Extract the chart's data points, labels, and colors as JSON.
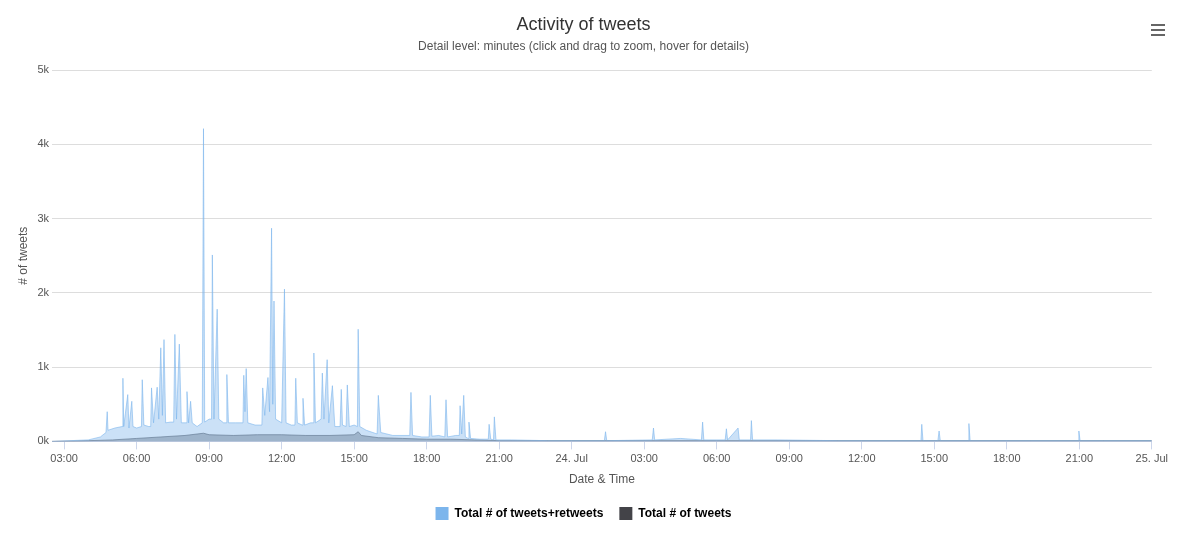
{
  "chart_data": {
    "type": "area",
    "title": "Activity of tweets",
    "subtitle": "Detail level: minutes (click and drag to zoom, hover for details)",
    "xlabel": "Date & Time",
    "ylabel": "# of tweets",
    "xlim": [
      "--07-23T02:30",
      "--07-25T00:00"
    ],
    "xticks": [
      {
        "value": "--07-23T03:00",
        "label": "03:00"
      },
      {
        "value": "--07-23T06:00",
        "label": "06:00"
      },
      {
        "value": "--07-23T09:00",
        "label": "09:00"
      },
      {
        "value": "--07-23T12:00",
        "label": "12:00"
      },
      {
        "value": "--07-23T15:00",
        "label": "15:00"
      },
      {
        "value": "--07-23T18:00",
        "label": "18:00"
      },
      {
        "value": "--07-23T21:00",
        "label": "21:00"
      },
      {
        "value": "--07-24T00:00",
        "label": "24. Jul"
      },
      {
        "value": "--07-24T03:00",
        "label": "03:00"
      },
      {
        "value": "--07-24T06:00",
        "label": "06:00"
      },
      {
        "value": "--07-24T09:00",
        "label": "09:00"
      },
      {
        "value": "--07-24T12:00",
        "label": "12:00"
      },
      {
        "value": "--07-24T15:00",
        "label": "15:00"
      },
      {
        "value": "--07-24T18:00",
        "label": "18:00"
      },
      {
        "value": "--07-24T21:00",
        "label": "21:00"
      },
      {
        "value": "--07-25T00:00",
        "label": "25. Jul"
      }
    ],
    "ylim": [
      0,
      5000
    ],
    "yticks": [
      {
        "value": 0,
        "label": "0k"
      },
      {
        "value": 1000,
        "label": "1k"
      },
      {
        "value": 2000,
        "label": "2k"
      },
      {
        "value": 3000,
        "label": "3k"
      },
      {
        "value": 4000,
        "label": "4k"
      },
      {
        "value": 5000,
        "label": "5k"
      }
    ],
    "grid": "y",
    "legend": "bottom",
    "series": [
      {
        "name": "Total # of tweets+retweets",
        "color": "#7cb5ec",
        "x": [
          "--07-23T02:30",
          "--07-23T04:00",
          "--07-23T04:30",
          "--07-23T04:44",
          "--07-23T04:47",
          "--07-23T04:49",
          "--07-23T05:06",
          "--07-23T05:24",
          "--07-23T05:26",
          "--07-23T05:28",
          "--07-23T05:38",
          "--07-23T05:41",
          "--07-23T05:48",
          "--07-23T05:51",
          "--07-23T06:00",
          "--07-23T06:12",
          "--07-23T06:14",
          "--07-23T06:18",
          "--07-23T06:30",
          "--07-23T06:35",
          "--07-23T06:37",
          "--07-23T06:42",
          "--07-23T06:51",
          "--07-23T06:55",
          "--07-23T07:00",
          "--07-23T07:04",
          "--07-23T07:08",
          "--07-23T07:12",
          "--07-23T07:24",
          "--07-23T07:32",
          "--07-23T07:35",
          "--07-23T07:39",
          "--07-23T07:46",
          "--07-23T07:51",
          "--07-23T08:03",
          "--07-23T08:05",
          "--07-23T08:09",
          "--07-23T08:14",
          "--07-23T08:18",
          "--07-23T08:30",
          "--07-23T08:43",
          "--07-23T08:46",
          "--07-23T08:49",
          "--07-23T09:00",
          "--07-23T09:06",
          "--07-23T09:08",
          "--07-23T09:12",
          "--07-23T09:20",
          "--07-23T09:24",
          "--07-23T09:36",
          "--07-23T09:42",
          "--07-23T09:44",
          "--07-23T09:48",
          "--07-23T10:06",
          "--07-23T10:24",
          "--07-23T10:26",
          "--07-23T10:29",
          "--07-23T10:32",
          "--07-23T10:36",
          "--07-23T10:54",
          "--07-23T11:11",
          "--07-23T11:13",
          "--07-23T11:18",
          "--07-23T11:26",
          "--07-23T11:30",
          "--07-23T11:35",
          "--07-23T11:38",
          "--07-23T11:41",
          "--07-23T11:45",
          "--07-23T12:00",
          "--07-23T12:07",
          "--07-23T12:11",
          "--07-23T12:24",
          "--07-23T12:33",
          "--07-23T12:35",
          "--07-23T12:39",
          "--07-23T12:51",
          "--07-23T12:53",
          "--07-23T12:57",
          "--07-23T13:12",
          "--07-23T13:18",
          "--07-23T13:20",
          "--07-23T13:24",
          "--07-23T13:38",
          "--07-23T13:41",
          "--07-23T13:45",
          "--07-23T13:53",
          "--07-23T13:57",
          "--07-23T14:06",
          "--07-23T14:12",
          "--07-23T14:25",
          "--07-23T14:28",
          "--07-23T14:31",
          "--07-23T14:40",
          "--07-23T14:43",
          "--07-23T14:48",
          "--07-23T15:00",
          "--07-23T15:08",
          "--07-23T15:10",
          "--07-23T15:14",
          "--07-23T15:30",
          "--07-23T15:57",
          "--07-23T16:00",
          "--07-23T16:06",
          "--07-23T16:36",
          "--07-23T17:18",
          "--07-23T17:21",
          "--07-23T17:25",
          "--07-23T17:48",
          "--07-23T18:06",
          "--07-23T18:09",
          "--07-23T18:13",
          "--07-23T18:30",
          "--07-23T18:45",
          "--07-23T18:48",
          "--07-23T18:52",
          "--07-23T19:12",
          "--07-23T19:21",
          "--07-23T19:23",
          "--07-23T19:27",
          "--07-23T19:32",
          "--07-23T19:36",
          "--07-23T19:43",
          "--07-23T19:45",
          "--07-23T19:49",
          "--07-23T20:12",
          "--07-23T20:33",
          "--07-23T20:35",
          "--07-23T20:39",
          "--07-23T20:46",
          "--07-23T20:48",
          "--07-23T20:52",
          "--07-23T21:30",
          "--07-23T23:00",
          "--07-24T01:21",
          "--07-24T01:24",
          "--07-24T01:27",
          "--07-24T03:20",
          "--07-24T03:23",
          "--07-24T03:26",
          "--07-24T04:30",
          "--07-24T05:22",
          "--07-24T05:25",
          "--07-24T05:28",
          "--07-24T06:21",
          "--07-24T06:24",
          "--07-24T06:27",
          "--07-24T06:53",
          "--07-24T06:56",
          "--07-24T07:24",
          "--07-24T07:26",
          "--07-24T07:29",
          "--07-24T08:30",
          "--07-24T11:00",
          "--07-24T14:27",
          "--07-24T14:29",
          "--07-24T14:32",
          "--07-24T15:09",
          "--07-24T15:12",
          "--07-24T15:15",
          "--07-24T16:24",
          "--07-24T16:26",
          "--07-24T16:29",
          "--07-24T19:00",
          "--07-24T20:57",
          "--07-24T20:59",
          "--07-24T21:02",
          "--07-24T22:00",
          "--07-25T00:00"
        ],
        "values": [
          0,
          20,
          60,
          120,
          400,
          150,
          180,
          200,
          850,
          200,
          630,
          180,
          540,
          200,
          180,
          200,
          830,
          220,
          200,
          200,
          720,
          250,
          730,
          300,
          1260,
          350,
          1370,
          250,
          260,
          260,
          1440,
          300,
          1310,
          250,
          250,
          670,
          250,
          540,
          250,
          200,
          250,
          4210,
          260,
          300,
          300,
          2510,
          300,
          1780,
          300,
          250,
          250,
          900,
          250,
          250,
          250,
          890,
          400,
          980,
          250,
          220,
          220,
          720,
          350,
          860,
          400,
          2870,
          500,
          1890,
          300,
          250,
          2050,
          250,
          220,
          220,
          850,
          250,
          220,
          580,
          220,
          250,
          250,
          1190,
          250,
          300,
          920,
          300,
          1100,
          250,
          750,
          200,
          200,
          700,
          220,
          200,
          760,
          200,
          220,
          200,
          1510,
          200,
          150,
          100,
          620,
          120,
          80,
          80,
          660,
          80,
          60,
          60,
          620,
          70,
          80,
          60,
          560,
          60,
          80,
          80,
          480,
          100,
          620,
          60,
          40,
          260,
          40,
          30,
          30,
          230,
          30,
          20,
          330,
          20,
          20,
          10,
          10,
          130,
          10,
          20,
          180,
          20,
          40,
          20,
          260,
          20,
          20,
          170,
          20,
          180,
          20,
          20,
          280,
          20,
          20,
          10,
          10,
          230,
          10,
          10,
          140,
          10,
          10,
          240,
          10,
          10,
          10,
          140,
          10,
          10,
          10
        ]
      },
      {
        "name": "Total # of tweets",
        "color": "#434348",
        "x": [
          "--07-23T02:30",
          "--07-23T04:00",
          "--07-23T05:00",
          "--07-23T06:00",
          "--07-23T07:00",
          "--07-23T08:00",
          "--07-23T08:46",
          "--07-23T09:00",
          "--07-23T10:00",
          "--07-23T11:00",
          "--07-23T12:00",
          "--07-23T13:00",
          "--07-23T14:00",
          "--07-23T15:00",
          "--07-23T15:10",
          "--07-23T15:18",
          "--07-23T16:00",
          "--07-23T17:00",
          "--07-23T18:00",
          "--07-23T19:00",
          "--07-23T20:00",
          "--07-23T21:00",
          "--07-24T00:00",
          "--07-24T06:00",
          "--07-24T12:00",
          "--07-24T18:00",
          "--07-25T00:00"
        ],
        "values": [
          0,
          10,
          20,
          40,
          60,
          80,
          110,
          90,
          80,
          90,
          90,
          80,
          80,
          90,
          130,
          80,
          50,
          40,
          30,
          30,
          20,
          10,
          10,
          10,
          10,
          10,
          10
        ]
      }
    ]
  }
}
